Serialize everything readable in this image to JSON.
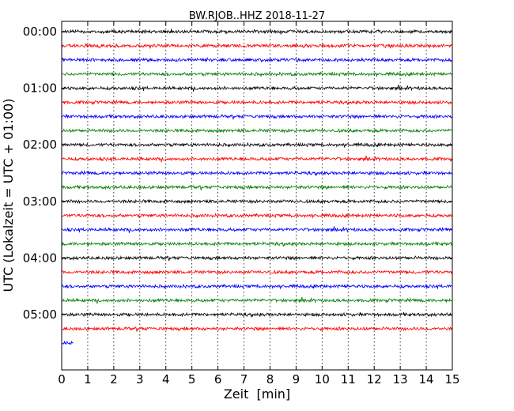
{
  "chart_data": {
    "type": "line",
    "title": "BW.RJOB..HHZ 2018-11-27",
    "xlabel": "Zeit  [min]",
    "ylabel": "UTC (Lokalzeit = UTC + 01:00)",
    "xlim": [
      0,
      15
    ],
    "x_ticks": [
      "0",
      "1",
      "2",
      "3",
      "4",
      "5",
      "6",
      "7",
      "8",
      "9",
      "10",
      "11",
      "12",
      "13",
      "14",
      "15"
    ],
    "y_ticks": [
      "00:00",
      "01:00",
      "02:00",
      "03:00",
      "04:00",
      "05:00"
    ],
    "x_grid": "dotted vertical lines at each minute",
    "series_colors": [
      "#000000",
      "#ff0000",
      "#0000ff",
      "#007f00"
    ],
    "traces": [
      {
        "start": "00:00",
        "end_min": 15,
        "color": "#000000"
      },
      {
        "start": "00:15",
        "end_min": 15,
        "color": "#ff0000"
      },
      {
        "start": "00:30",
        "end_min": 15,
        "color": "#0000ff"
      },
      {
        "start": "00:45",
        "end_min": 15,
        "color": "#007f00"
      },
      {
        "start": "01:00",
        "end_min": 15,
        "color": "#000000"
      },
      {
        "start": "01:15",
        "end_min": 15,
        "color": "#ff0000"
      },
      {
        "start": "01:30",
        "end_min": 15,
        "color": "#0000ff"
      },
      {
        "start": "01:45",
        "end_min": 15,
        "color": "#007f00"
      },
      {
        "start": "02:00",
        "end_min": 15,
        "color": "#000000"
      },
      {
        "start": "02:15",
        "end_min": 15,
        "color": "#ff0000"
      },
      {
        "start": "02:30",
        "end_min": 15,
        "color": "#0000ff"
      },
      {
        "start": "02:45",
        "end_min": 15,
        "color": "#007f00"
      },
      {
        "start": "03:00",
        "end_min": 15,
        "color": "#000000"
      },
      {
        "start": "03:15",
        "end_min": 15,
        "color": "#ff0000"
      },
      {
        "start": "03:30",
        "end_min": 15,
        "color": "#0000ff"
      },
      {
        "start": "03:45",
        "end_min": 15,
        "color": "#007f00"
      },
      {
        "start": "04:00",
        "end_min": 15,
        "color": "#000000"
      },
      {
        "start": "04:15",
        "end_min": 15,
        "color": "#ff0000"
      },
      {
        "start": "04:30",
        "end_min": 15,
        "color": "#0000ff"
      },
      {
        "start": "04:45",
        "end_min": 15,
        "color": "#007f00"
      },
      {
        "start": "05:00",
        "end_min": 15,
        "color": "#000000"
      },
      {
        "start": "05:15",
        "end_min": 15,
        "color": "#ff0000"
      },
      {
        "start": "05:30",
        "end_min": 0.45,
        "color": "#0000ff"
      }
    ]
  }
}
